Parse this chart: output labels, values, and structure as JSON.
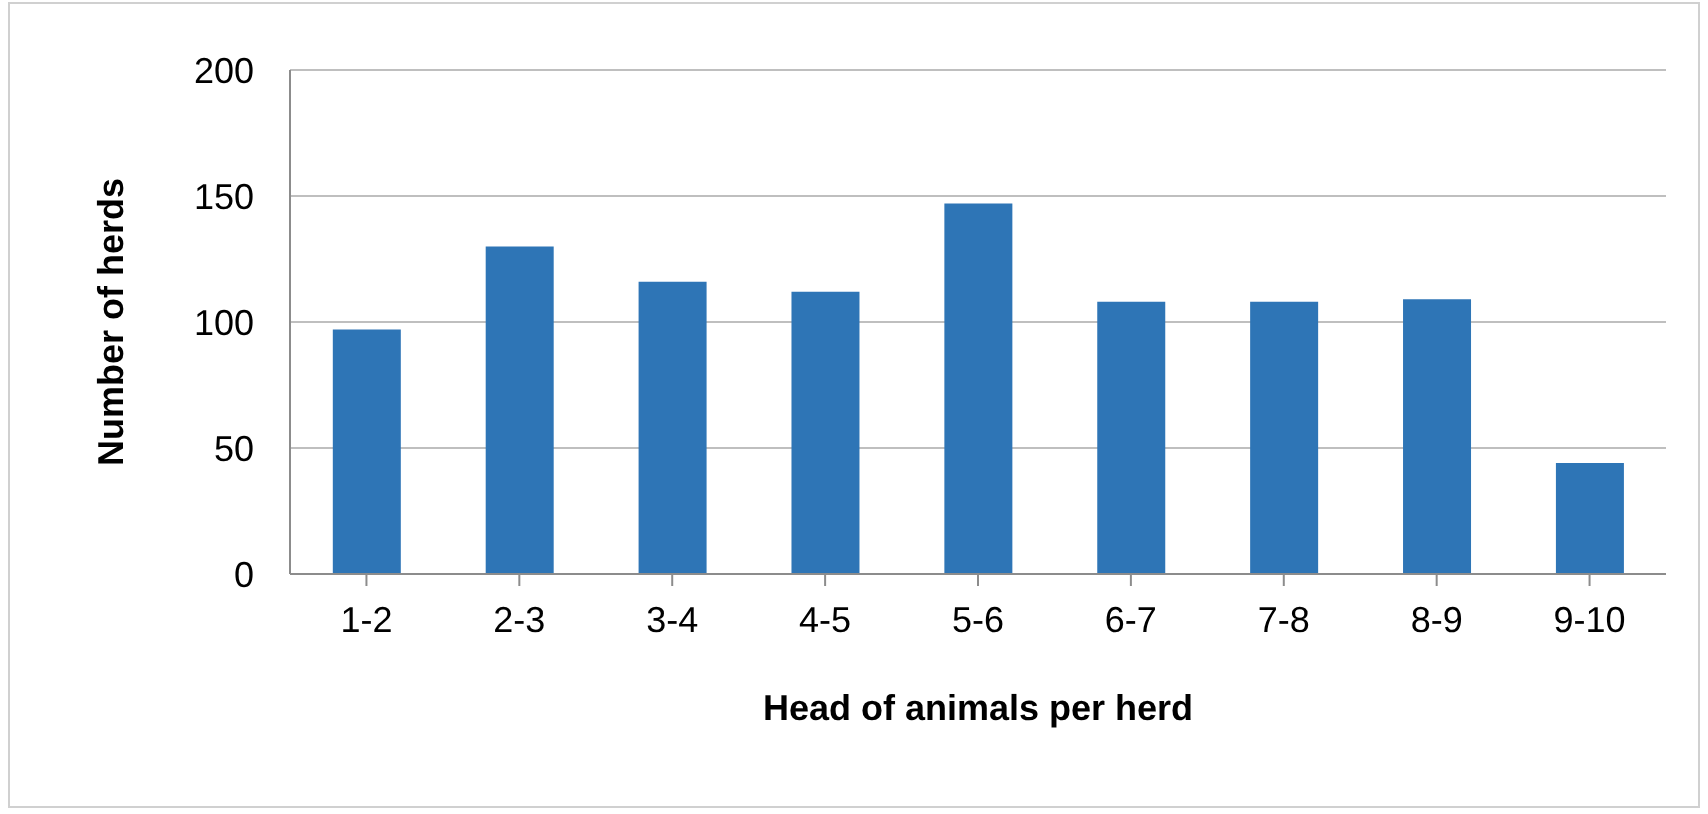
{
  "chart_data": {
    "type": "bar",
    "xlabel": "Head of animals per herd",
    "ylabel": "Number of herds",
    "categories": [
      "1-2",
      "2-3",
      "3-4",
      "4-5",
      "5-6",
      "6-7",
      "7-8",
      "8-9",
      "9-10"
    ],
    "values": [
      97,
      130,
      116,
      112,
      147,
      108,
      108,
      109,
      44
    ],
    "color": "#2e75b6",
    "ylim": [
      0,
      200
    ],
    "yticks": [
      0,
      50,
      100,
      150,
      200
    ],
    "grid": "y",
    "legend": false
  }
}
